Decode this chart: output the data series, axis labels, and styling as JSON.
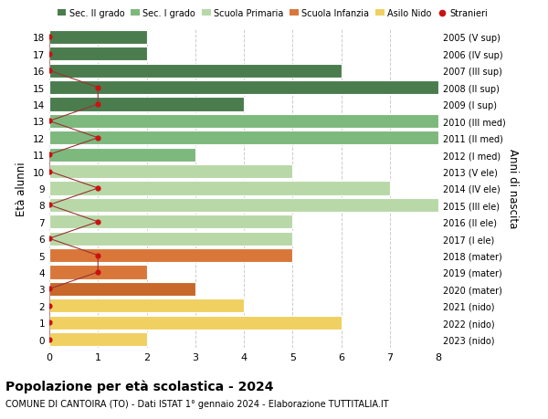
{
  "ages": [
    18,
    17,
    16,
    15,
    14,
    13,
    12,
    11,
    10,
    9,
    8,
    7,
    6,
    5,
    4,
    3,
    2,
    1,
    0
  ],
  "years": [
    "2005 (V sup)",
    "2006 (IV sup)",
    "2007 (III sup)",
    "2008 (II sup)",
    "2009 (I sup)",
    "2010 (III med)",
    "2011 (II med)",
    "2012 (I med)",
    "2013 (V ele)",
    "2014 (IV ele)",
    "2015 (III ele)",
    "2016 (II ele)",
    "2017 (I ele)",
    "2018 (mater)",
    "2019 (mater)",
    "2020 (mater)",
    "2021 (nido)",
    "2022 (nido)",
    "2023 (nido)"
  ],
  "bar_values": [
    2,
    2,
    6,
    8,
    4,
    8,
    8,
    3,
    5,
    7,
    8,
    5,
    5,
    5,
    2,
    3,
    4,
    6,
    2
  ],
  "bar_colors": [
    "#4a7c4e",
    "#4a7c4e",
    "#4a7c4e",
    "#4a7c4e",
    "#4a7c4e",
    "#7db87d",
    "#7db87d",
    "#7db87d",
    "#b8d8a8",
    "#b8d8a8",
    "#b8d8a8",
    "#b8d8a8",
    "#b8d8a8",
    "#d9773a",
    "#d9773a",
    "#c8682a",
    "#f0d060",
    "#f0d060",
    "#f0d060"
  ],
  "stranieri_x": [
    0,
    0,
    0,
    1,
    1,
    0,
    1,
    0,
    0,
    1,
    0,
    1,
    0,
    1,
    1,
    0,
    0,
    0,
    0
  ],
  "xlim": [
    0,
    8
  ],
  "ylim": [
    -0.5,
    18.5
  ],
  "ylabel": "Età alunni",
  "ylabel2": "Anni di nascita",
  "title": "Popolazione per età scolastica - 2024",
  "subtitle": "COMUNE DI CANTOIRA (TO) - Dati ISTAT 1° gennaio 2024 - Elaborazione TUTTITALIA.IT",
  "legend_labels": [
    "Sec. II grado",
    "Sec. I grado",
    "Scuola Primaria",
    "Scuola Infanzia",
    "Asilo Nido",
    "Stranieri"
  ],
  "legend_colors": [
    "#4a7c4e",
    "#7db87d",
    "#b8d8a8",
    "#d9773a",
    "#f0d060",
    "#cc1111"
  ],
  "bar_height": 0.82,
  "grid_color": "#cccccc",
  "stranieri_color": "#cc1111",
  "line_color": "#993333",
  "bg_color": "#ffffff",
  "xticks": [
    0,
    1,
    2,
    3,
    4,
    5,
    6,
    7,
    8
  ]
}
